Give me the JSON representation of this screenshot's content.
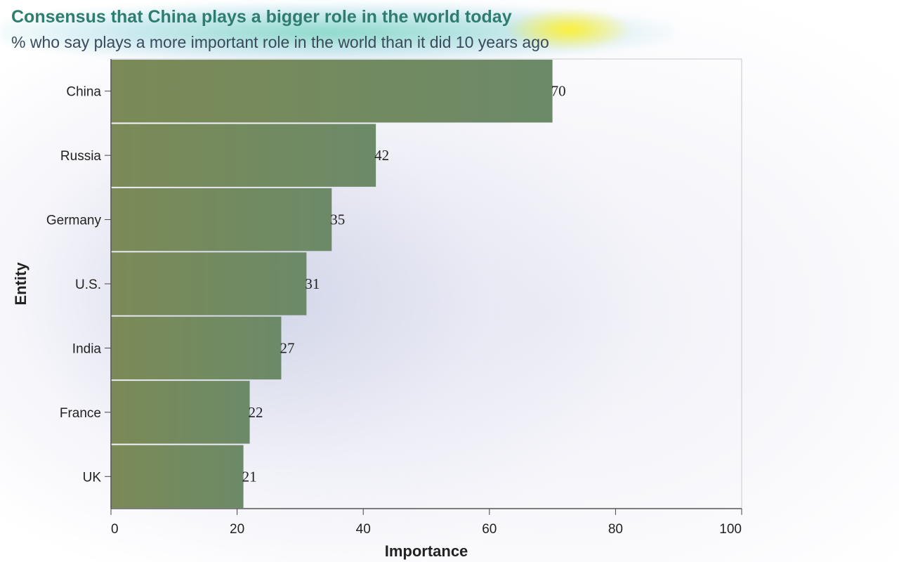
{
  "title": "Consensus that China plays a bigger role in the world today",
  "subtitle": "% who say plays a more important role in the world than it did 10 years ago",
  "colors": {
    "bar": "#7b8a56",
    "bar_right": "#6c8a68",
    "title": "#2e7d6e"
  },
  "chart_data": {
    "type": "bar",
    "orientation": "horizontal",
    "categories": [
      "China",
      "Russia",
      "Germany",
      "U.S.",
      "India",
      "France",
      "UK"
    ],
    "values": [
      70,
      42,
      35,
      31,
      27,
      22,
      21
    ],
    "title": "Consensus that China plays a bigger role in the world today",
    "subtitle": "% who say plays a more important role in the world than it did 10 years ago",
    "xlabel": "Importance",
    "ylabel": "Entity",
    "xlim": [
      0,
      100
    ],
    "xticks": [
      0,
      20,
      40,
      60,
      80,
      100
    ],
    "grid": false,
    "legend": "none"
  }
}
